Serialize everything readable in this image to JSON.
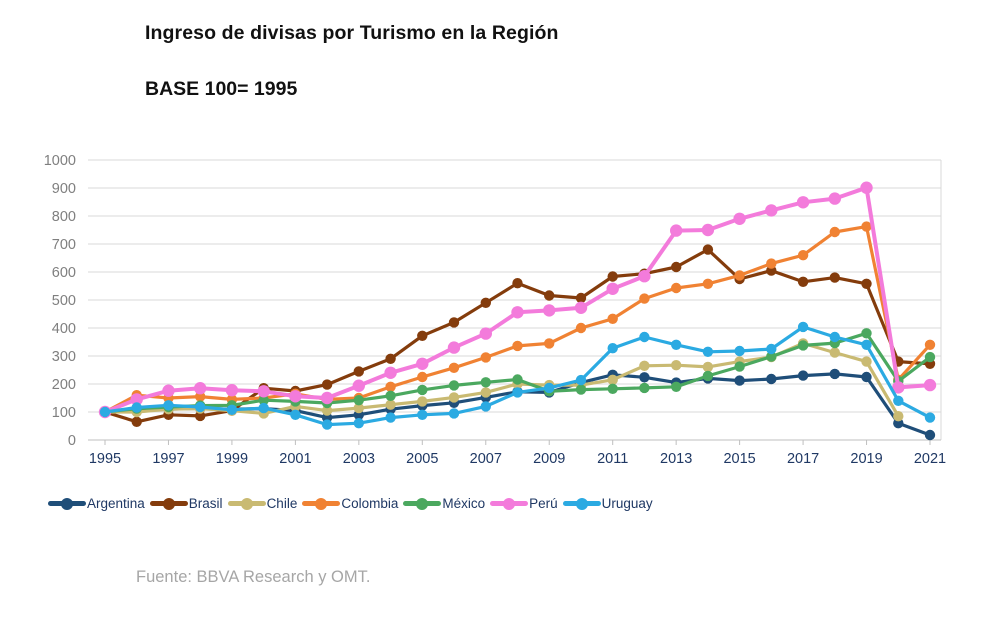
{
  "title": "Ingreso de divisas por Turismo en la Región",
  "subtitle": "BASE 100= 1995",
  "source": "Fuente: BBVA Research y OMT.",
  "axis_colors": {
    "y_labels": "#7F7F7F",
    "x_labels": "#1F3864",
    "gridline": "#D9D9D9",
    "axis_line": "#BFBFBF"
  },
  "chart_data": {
    "type": "line",
    "title": "Ingreso de divisas por Turismo en la Región",
    "subtitle": "BASE 100= 1995",
    "xlabel": "",
    "ylabel": "",
    "ylim": [
      0,
      1000
    ],
    "ytick_step": 100,
    "grid": true,
    "legend_position": "bottom",
    "x": [
      1995,
      1996,
      1997,
      1998,
      1999,
      2000,
      2001,
      2002,
      2003,
      2004,
      2005,
      2006,
      2007,
      2008,
      2009,
      2010,
      2011,
      2012,
      2013,
      2014,
      2015,
      2016,
      2017,
      2018,
      2019,
      2020,
      2021
    ],
    "x_tick_labels": [
      "1995",
      "1997",
      "1999",
      "2001",
      "2003",
      "2005",
      "2007",
      "2009",
      "2011",
      "2013",
      "2015",
      "2017",
      "2019",
      "2021"
    ],
    "series": [
      {
        "name": "Argentina",
        "color": "#1F4E79",
        "values": [
          100,
          104,
          110,
          113,
          110,
          112,
          105,
          80,
          90,
          110,
          123,
          133,
          152,
          172,
          170,
          205,
          233,
          224,
          205,
          220,
          212,
          218,
          230,
          236,
          225,
          60,
          18
        ]
      },
      {
        "name": "Brasil",
        "color": "#843C0C",
        "values": [
          100,
          65,
          90,
          86,
          105,
          185,
          175,
          198,
          245,
          290,
          372,
          420,
          490,
          560,
          516,
          507,
          584,
          594,
          618,
          680,
          575,
          605,
          565,
          580,
          558,
          280,
          272
        ]
      },
      {
        "name": "Chile",
        "color": "#C9BA72",
        "values": [
          100,
          100,
          110,
          112,
          105,
          95,
          120,
          105,
          114,
          126,
          138,
          152,
          170,
          200,
          196,
          196,
          215,
          265,
          267,
          261,
          280,
          296,
          345,
          312,
          280,
          85,
          null
        ]
      },
      {
        "name": "Colombia",
        "color": "#F08233",
        "values": [
          100,
          160,
          150,
          155,
          145,
          150,
          165,
          145,
          150,
          190,
          225,
          258,
          295,
          336,
          345,
          400,
          433,
          505,
          543,
          558,
          588,
          630,
          660,
          743,
          762,
          215,
          340
        ]
      },
      {
        "name": "México",
        "color": "#4BA85F",
        "values": [
          100,
          112,
          118,
          123,
          124,
          142,
          138,
          132,
          142,
          158,
          179,
          195,
          206,
          216,
          174,
          180,
          183,
          186,
          190,
          229,
          262,
          298,
          338,
          346,
          381,
          210,
          296
        ]
      },
      {
        "name": "Perú",
        "color": "#F37BDB",
        "values": [
          100,
          145,
          176,
          185,
          178,
          174,
          156,
          150,
          194,
          240,
          272,
          330,
          380,
          456,
          463,
          472,
          540,
          585,
          748,
          750,
          790,
          820,
          849,
          862,
          901,
          188,
          196
        ]
      },
      {
        "name": "Uruguay",
        "color": "#2BAAE2",
        "values": [
          100,
          116,
          124,
          118,
          108,
          114,
          90,
          55,
          60,
          80,
          90,
          95,
          120,
          170,
          186,
          214,
          328,
          368,
          340,
          315,
          318,
          325,
          404,
          368,
          340,
          140,
          80
        ]
      }
    ]
  }
}
